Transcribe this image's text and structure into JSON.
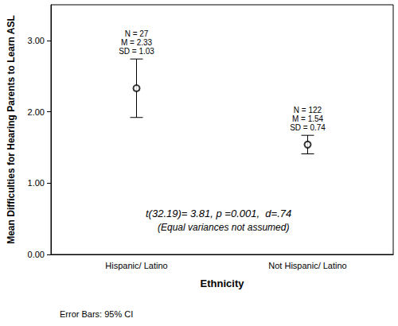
{
  "chart_data": {
    "type": "scatter",
    "x_label": "Ethnicity",
    "y_label": "Mean Difficulties for Hearing Parents to Learn ASL",
    "categories": [
      "Hispanic/ Latino",
      "Not Hispanic/ Latino"
    ],
    "values": [
      2.33,
      1.54
    ],
    "error_low": [
      1.92,
      1.41
    ],
    "error_high": [
      2.74,
      1.67
    ],
    "point_labels": [
      [
        "N = 27",
        "M = 2.33",
        "SD = 1.03"
      ],
      [
        "N = 122",
        "M = 1.54",
        "SD = 0.74"
      ]
    ],
    "annotations": [
      "t(32.19)= 3.81, p =0.001,  d=.74",
      "(Equal variances not assumed)"
    ],
    "footer": "Error Bars: 95% CI",
    "ylim": [
      0,
      3.5
    ],
    "yticks": [
      {
        "value": 0,
        "label": "0.00"
      },
      {
        "value": 1,
        "label": "1.00"
      },
      {
        "value": 2,
        "label": "2.00"
      },
      {
        "value": 3,
        "label": "3.00"
      }
    ],
    "marker": "circle",
    "color": "#000000",
    "grid": false
  }
}
